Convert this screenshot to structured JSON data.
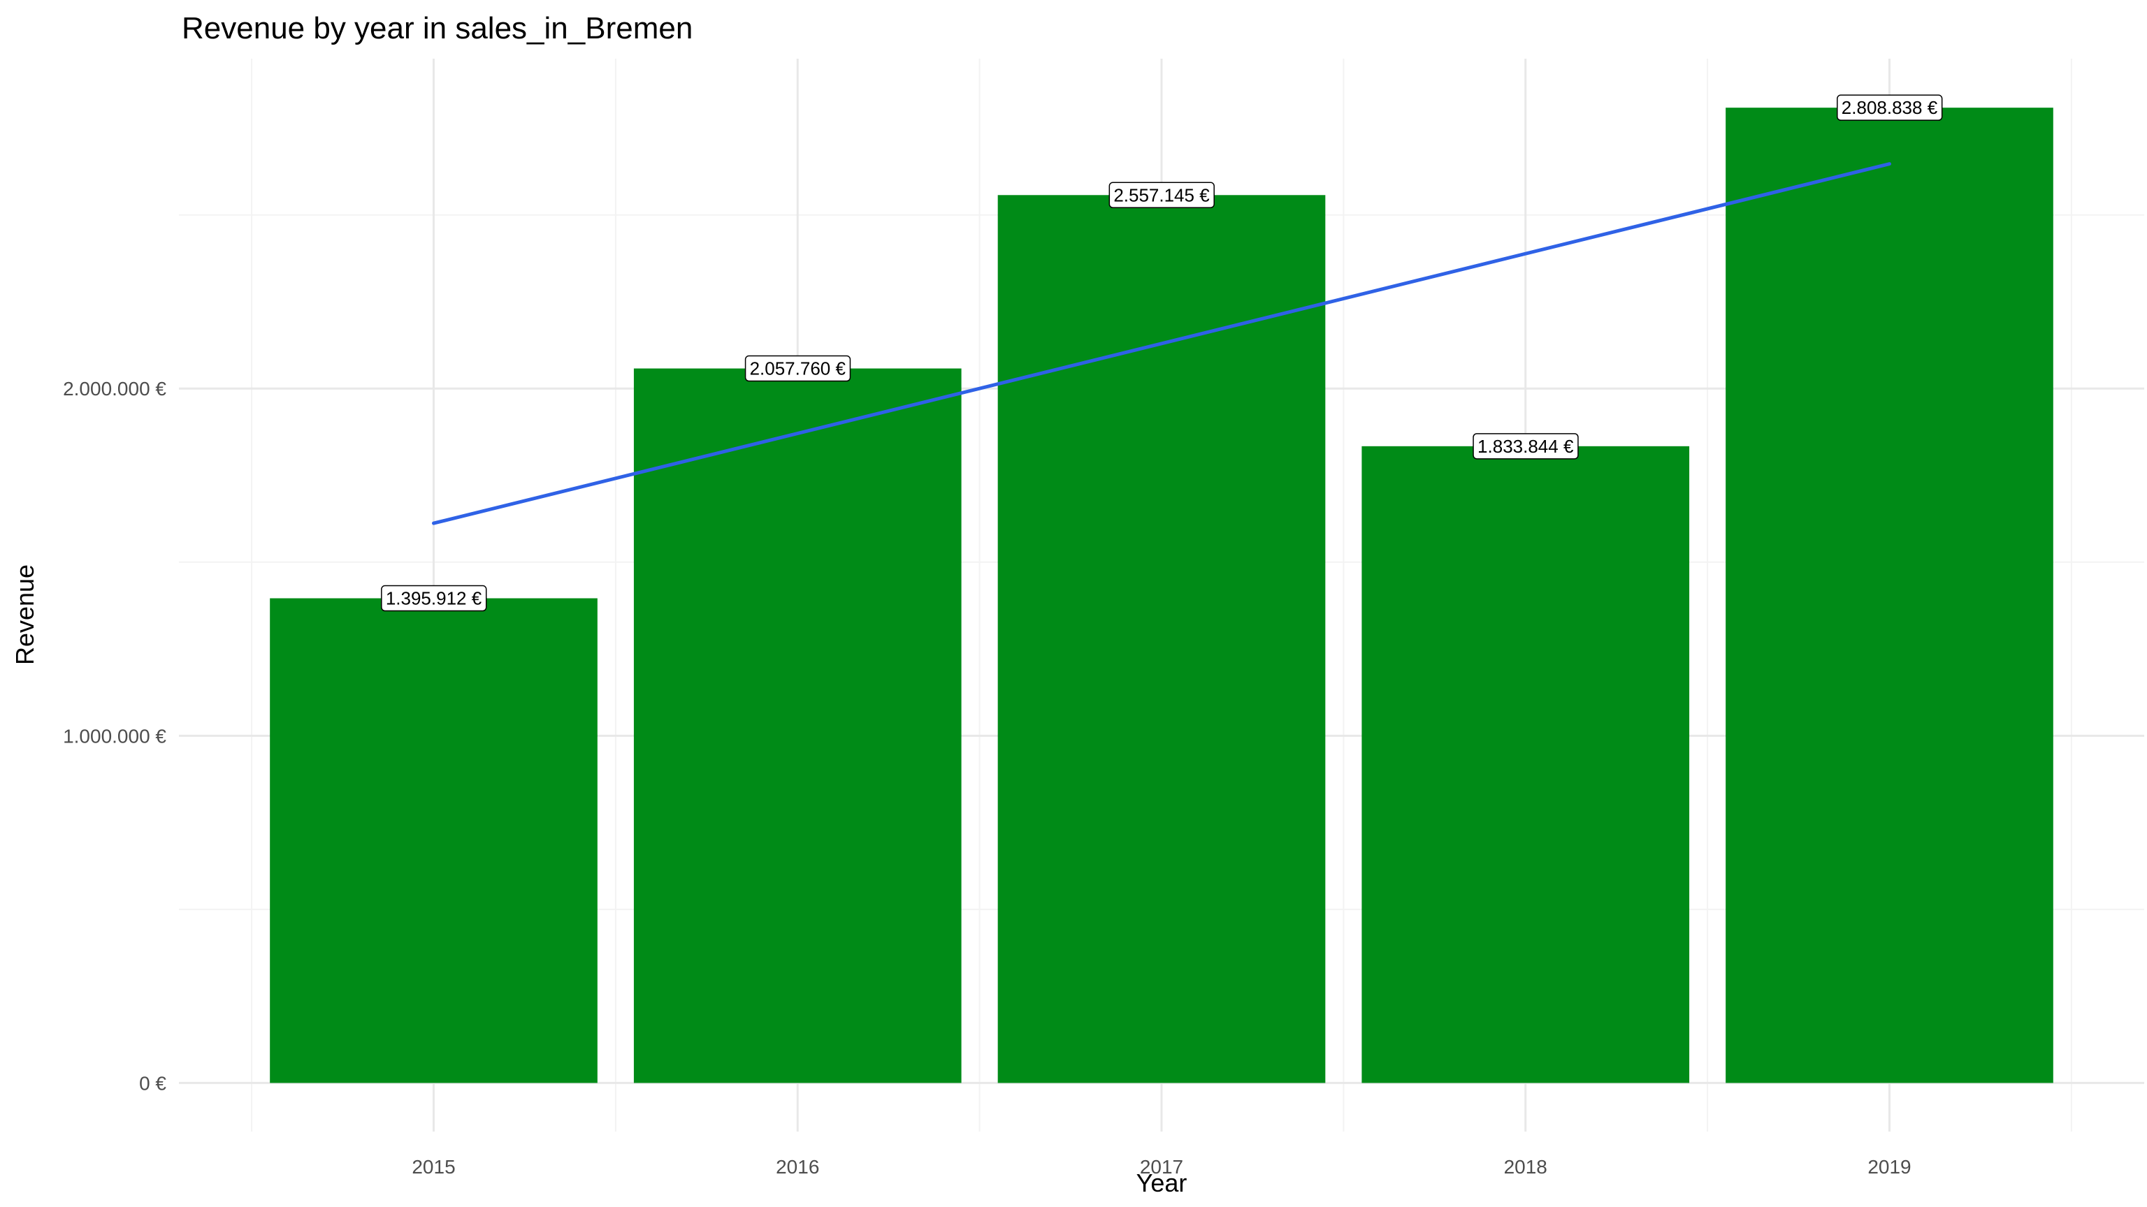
{
  "chart_data": {
    "type": "bar",
    "title": "Revenue by year in sales_in_Bremen",
    "xlabel": "Year",
    "ylabel": "Revenue",
    "categories": [
      "2015",
      "2016",
      "2017",
      "2018",
      "2019"
    ],
    "values": [
      1395912,
      2057760,
      2557145,
      1833844,
      2808838
    ],
    "value_labels": [
      "1.395.912 €",
      "2.057.760 €",
      "2.557.145 €",
      "1.833.844 €",
      "2.808.838 €"
    ],
    "y_ticks": [
      0,
      1000000,
      2000000
    ],
    "y_tick_labels": [
      "0 €",
      "1.000.000 €",
      "2.000.000 €"
    ],
    "ylim": [
      -140000,
      2950000
    ],
    "grid": true,
    "bar_color": "#008B17",
    "trend_line": {
      "type": "linear",
      "color": "#2F62E6",
      "start": 1612000,
      "end": 2647000
    }
  }
}
